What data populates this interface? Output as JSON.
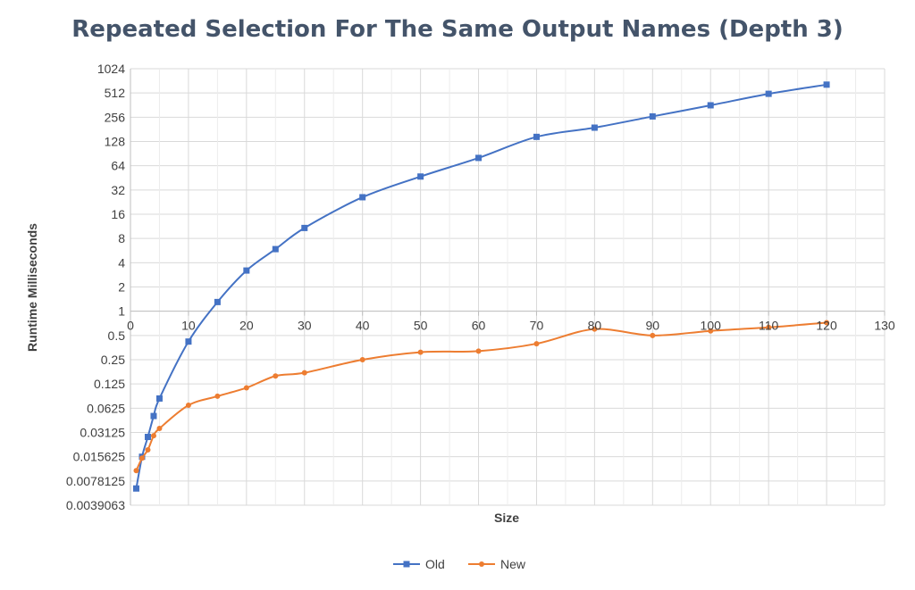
{
  "chart_data": {
    "type": "line",
    "title": "Repeated Selection For The Same Output Names (Depth 3)",
    "xlabel": "Size",
    "ylabel": "Runtime Milliseconds",
    "xlim": [
      0,
      130
    ],
    "x_ticks": [
      0,
      10,
      20,
      30,
      40,
      50,
      60,
      70,
      80,
      90,
      100,
      110,
      120,
      130
    ],
    "y_scale": "log2",
    "ylim": [
      0.0039063,
      1024
    ],
    "y_ticks": [
      1024,
      512,
      256,
      128,
      64,
      32,
      16,
      8,
      4,
      2,
      1,
      0.5,
      0.25,
      0.125,
      0.0625,
      0.03125,
      0.015625,
      0.0078125,
      0.0039063
    ],
    "y_tick_labels": [
      "1024",
      "512",
      "256",
      "128",
      "64",
      "32",
      "16",
      "8",
      "4",
      "2",
      "1",
      "0.5",
      "0.25",
      "0.125",
      "0.0625",
      "0.03125",
      "0.015625",
      "0.0078125",
      "0.0039063"
    ],
    "x_axis_crosses_y_at": 1,
    "grid": true,
    "legend_position": "bottom",
    "series": [
      {
        "name": "Old",
        "color": "#4472c4",
        "marker": "square",
        "x": [
          1,
          2,
          3,
          4,
          5,
          10,
          15,
          20,
          25,
          30,
          40,
          50,
          60,
          70,
          80,
          90,
          100,
          110,
          120
        ],
        "y": [
          0.0063,
          0.0156,
          0.0275,
          0.05,
          0.0825,
          0.42,
          1.3,
          3.2,
          5.9,
          10.8,
          26,
          47,
          80,
          146,
          190,
          262,
          360,
          500,
          650
        ]
      },
      {
        "name": "New",
        "color": "#ed7d31",
        "marker": "circle",
        "x": [
          1,
          2,
          3,
          4,
          5,
          10,
          15,
          20,
          25,
          30,
          40,
          50,
          60,
          70,
          80,
          90,
          100,
          110,
          120
        ],
        "y": [
          0.0105,
          0.015,
          0.019,
          0.0285,
          0.035,
          0.068,
          0.088,
          0.112,
          0.157,
          0.172,
          0.25,
          0.31,
          0.32,
          0.395,
          0.6,
          0.5,
          0.57,
          0.63,
          0.72
        ]
      }
    ]
  }
}
